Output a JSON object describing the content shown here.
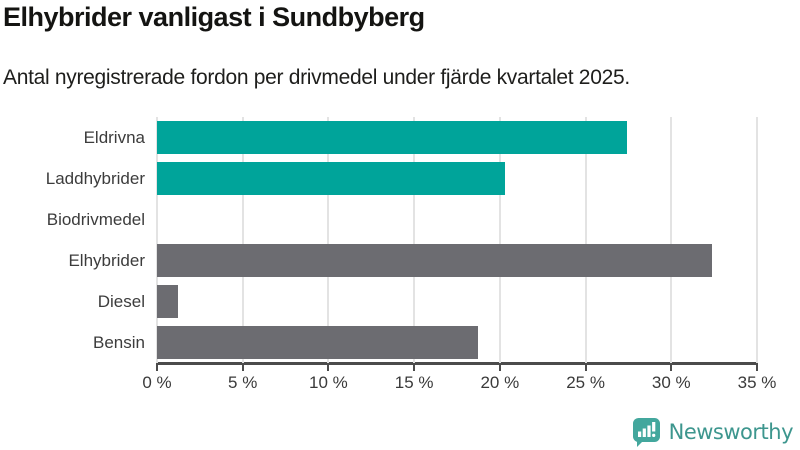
{
  "chart_data": {
    "type": "bar",
    "orientation": "horizontal",
    "title": "Elhybrider vanligast i Sundbyberg",
    "subtitle": "Antal nyregistrerade fordon per drivmedel under fjärde kvartalet 2025.",
    "categories": [
      "Eldrivna",
      "Laddhybrider",
      "Biodrivmedel",
      "Elhybrider",
      "Diesel",
      "Bensin"
    ],
    "values": [
      27.4,
      20.3,
      0,
      32.4,
      1.2,
      18.7
    ],
    "unit": "%",
    "xlim": [
      0,
      35
    ],
    "xticks": [
      0,
      5,
      10,
      15,
      20,
      25,
      30,
      35
    ],
    "xtick_labels": [
      "0 %",
      "5 %",
      "10 %",
      "15 %",
      "20 %",
      "25 %",
      "30 %",
      "35 %"
    ],
    "grid": "vertical-only",
    "legend": "none",
    "bar_colors": [
      "#00a49a",
      "#00a49a",
      "#6c6c71",
      "#6c6c71",
      "#6c6c71",
      "#6c6c71"
    ],
    "highlight_color": "#00a49a",
    "default_color": "#6c6c71",
    "gridline_color": "#e3e3e3",
    "axis_color": "#4b4b4b"
  },
  "branding": {
    "name": "Newsworthy",
    "icon": "newsworthy-speech-bubble-barchart-icon",
    "icon_color": "#43a79d",
    "text_color": "#3d968e"
  }
}
